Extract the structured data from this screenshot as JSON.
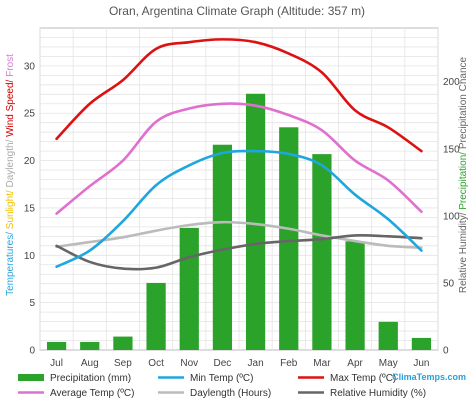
{
  "chart_data": {
    "type": "bar",
    "title": "Oran, Argentina Climate Graph (Altitude: 357 m)",
    "categories": [
      "Jul",
      "Aug",
      "Sep",
      "Oct",
      "Nov",
      "Dec",
      "Jan",
      "Feb",
      "Mar",
      "Apr",
      "May",
      "Jun"
    ],
    "left_axis": {
      "label_parts": [
        {
          "text": "Temperatures/ ",
          "color": "#2aa7e0"
        },
        {
          "text": "Sunlight/ ",
          "color": "#f0c000"
        },
        {
          "text": "Daylength/ ",
          "color": "#aaaaaa"
        },
        {
          "text": "Wind Speed/ ",
          "color": "#d40000"
        },
        {
          "text": "Frost",
          "color": "#d080d0"
        }
      ],
      "ticks": [
        0,
        5,
        10,
        15,
        20,
        25,
        30
      ],
      "ylim": [
        0,
        34
      ]
    },
    "right_axis": {
      "label_parts": [
        {
          "text": "Relative Humidity/ ",
          "color": "#666666"
        },
        {
          "text": "Precipitation/ ",
          "color": "#2ba32b"
        },
        {
          "text": "Precipitation Chance",
          "color": "#666666"
        }
      ],
      "ticks": [
        0,
        50,
        100,
        150,
        200
      ],
      "ylim": [
        0,
        240
      ]
    },
    "series": [
      {
        "name": "Precipitation (mm)",
        "type": "bar",
        "axis": "right",
        "color": "#2ba32b",
        "values": [
          6,
          6,
          10,
          50,
          91,
          153,
          191,
          166,
          146,
          81,
          21,
          9
        ]
      },
      {
        "name": "Min Temp (ºC)",
        "type": "line",
        "axis": "left",
        "color": "#1ea6e0",
        "values": [
          8.8,
          10.5,
          13.6,
          17.4,
          19.5,
          20.8,
          21.0,
          20.7,
          19.5,
          16.4,
          13.8,
          10.5
        ]
      },
      {
        "name": "Max Temp (ºC)",
        "type": "line",
        "axis": "left",
        "color": "#dd1111",
        "values": [
          22.3,
          26.0,
          28.5,
          31.8,
          32.5,
          32.8,
          32.5,
          31.3,
          29.3,
          25.3,
          23.5,
          21.0
        ]
      },
      {
        "name": "Average Temp (ºC)",
        "type": "line",
        "axis": "left",
        "color": "#e070d0",
        "values": [
          14.4,
          17.3,
          20.0,
          24.1,
          25.5,
          26.0,
          25.8,
          24.8,
          23.2,
          20.0,
          17.9,
          14.6
        ]
      },
      {
        "name": "Daylength (Hours)",
        "type": "line",
        "axis": "left",
        "color": "#bbbbbb",
        "values": [
          10.9,
          11.4,
          11.9,
          12.6,
          13.2,
          13.5,
          13.3,
          12.8,
          12.1,
          11.5,
          11.0,
          10.8
        ]
      },
      {
        "name": "Relative Humidity (%)",
        "type": "line",
        "axis": "left",
        "color": "#666666",
        "values": [
          11.0,
          9.3,
          8.6,
          8.7,
          9.8,
          10.6,
          11.2,
          11.5,
          11.7,
          12.1,
          12.0,
          11.8
        ]
      }
    ],
    "grid": true,
    "legend_position": "bottom"
  },
  "legend": [
    {
      "label": "Precipitation (mm)",
      "color": "#2ba32b",
      "shape": "bar"
    },
    {
      "label": "Min Temp (ºC)",
      "color": "#1ea6e0",
      "shape": "line"
    },
    {
      "label": "Max Temp (ºC)",
      "color": "#dd1111",
      "shape": "line"
    },
    {
      "label": "Average Temp (ºC)",
      "color": "#e070d0",
      "shape": "line"
    },
    {
      "label": "Daylength (Hours)",
      "color": "#bbbbbb",
      "shape": "line"
    },
    {
      "label": "Relative Humidity (%)",
      "color": "#666666",
      "shape": "line"
    }
  ],
  "brand": "ClimaTemps.com"
}
